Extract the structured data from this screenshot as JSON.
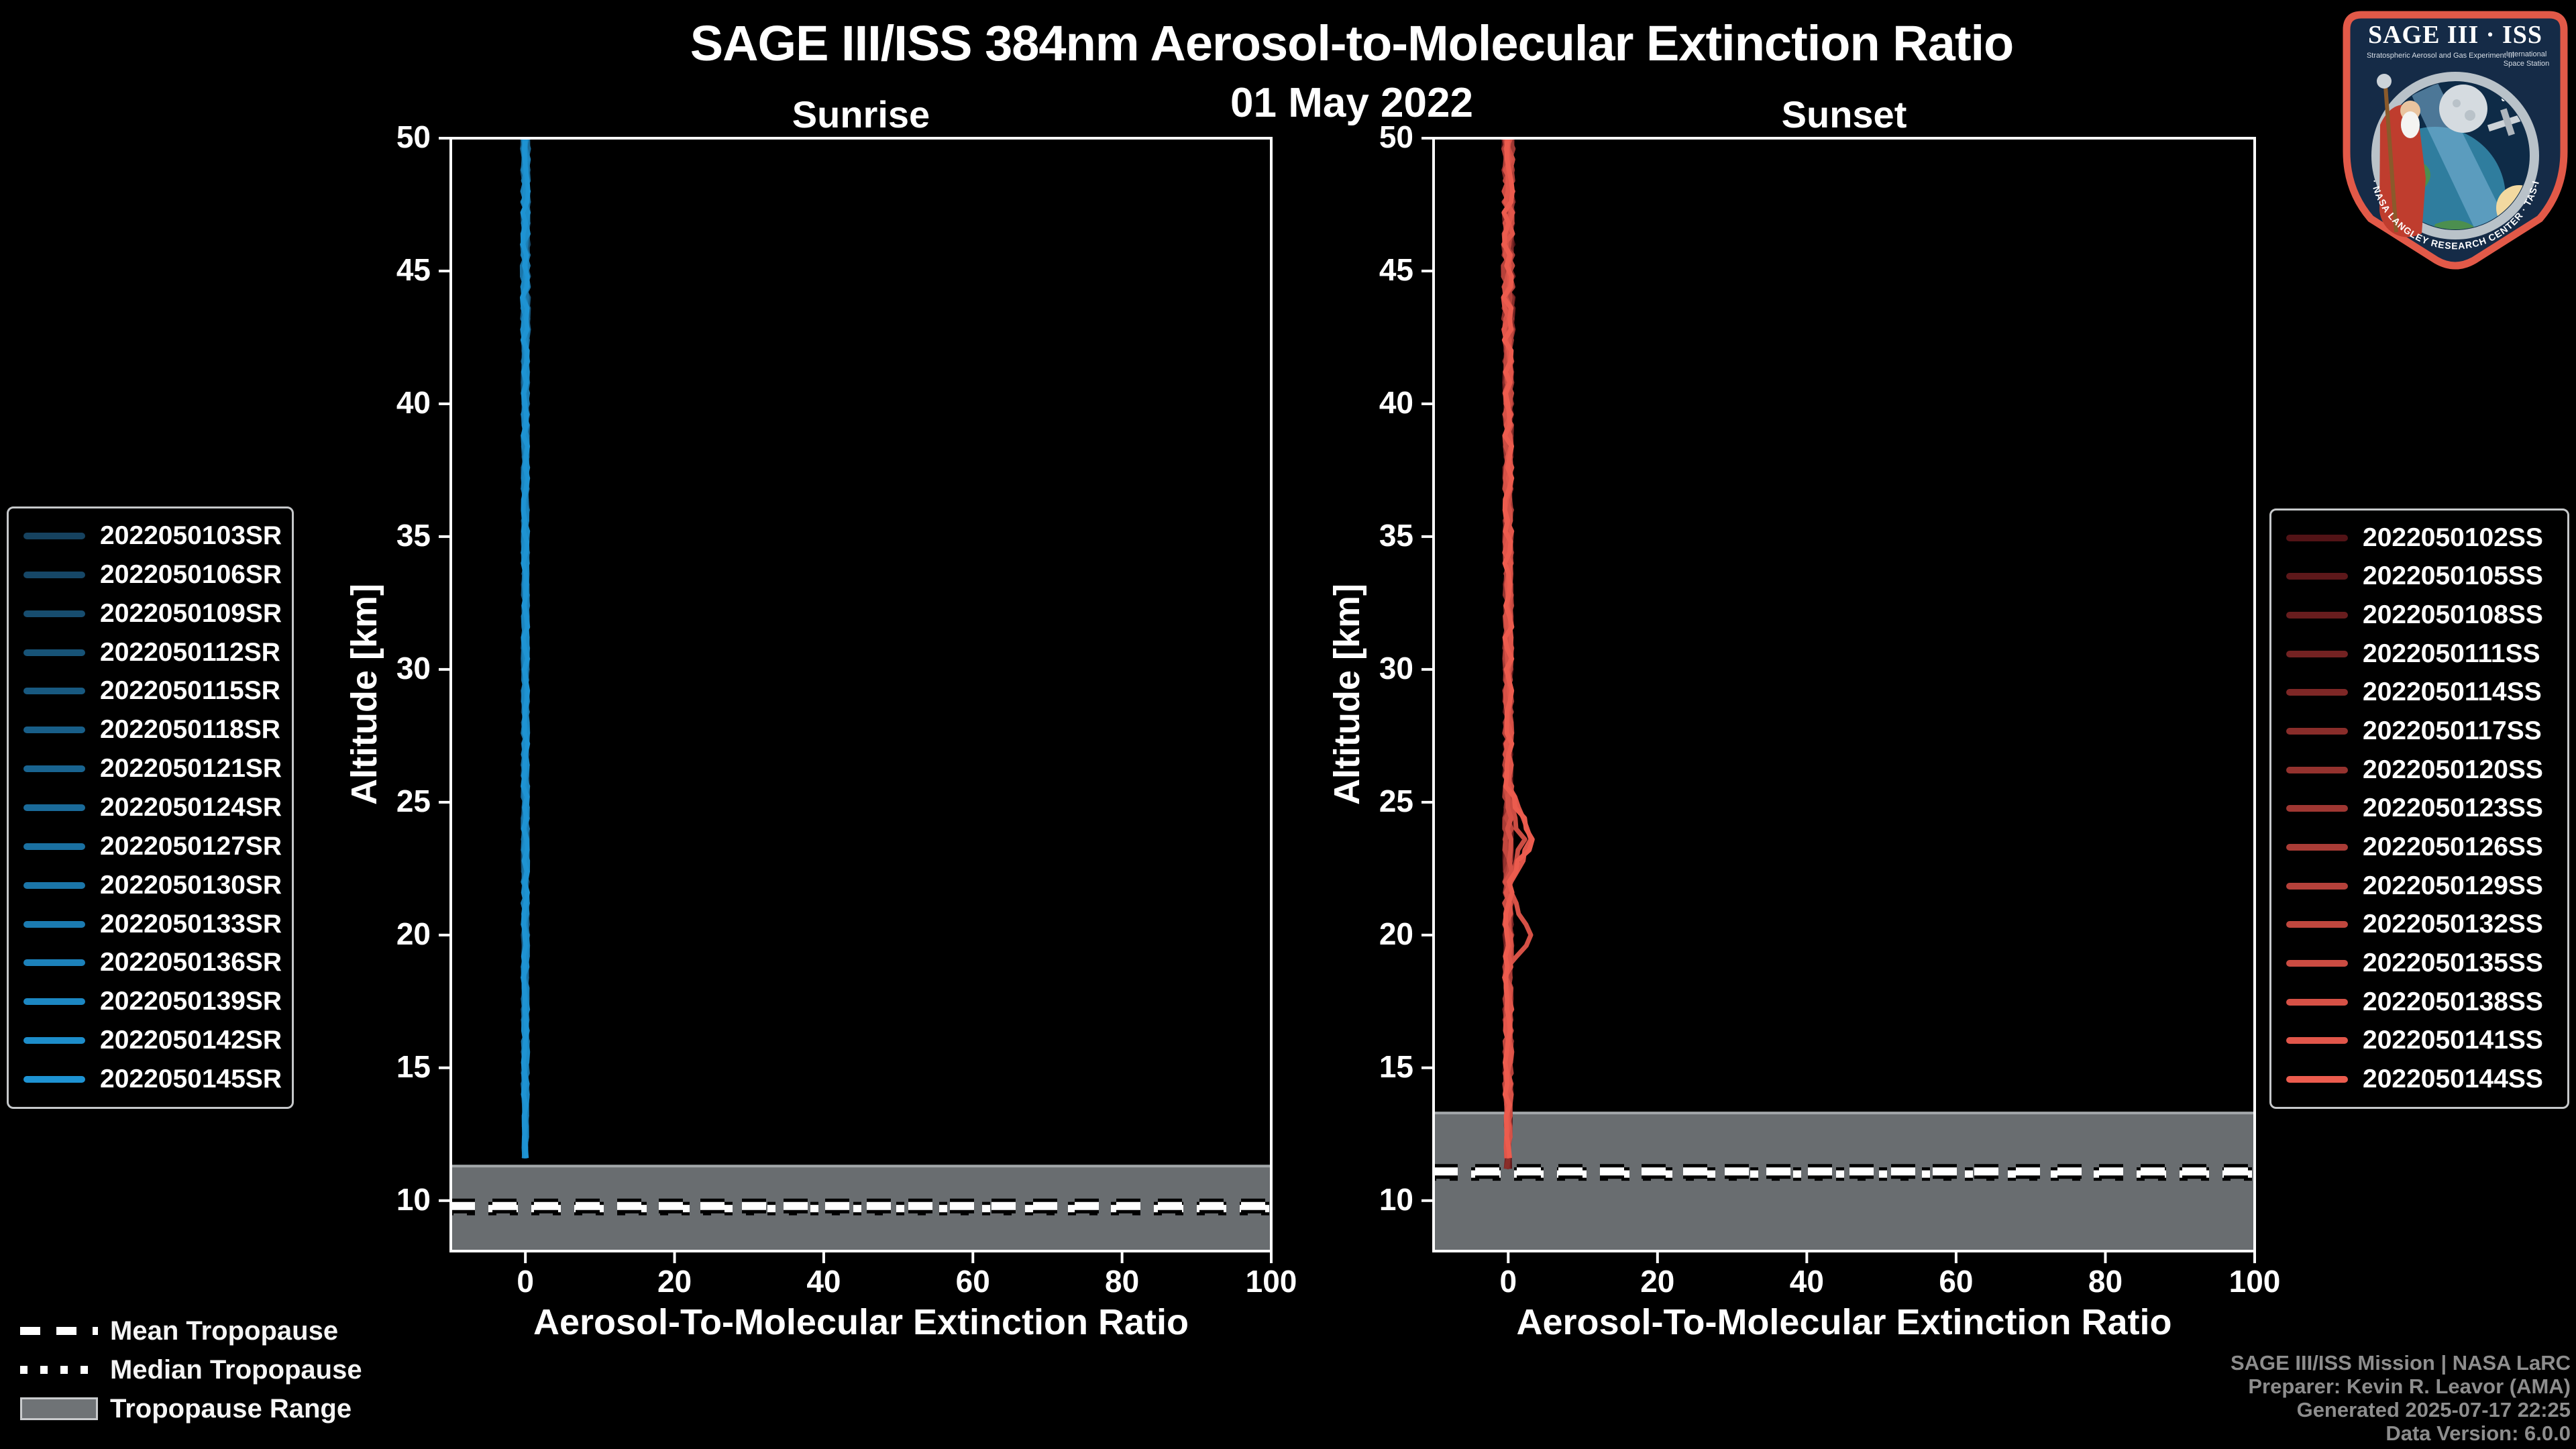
{
  "title": {
    "text": "SAGE III/ISS 384nm Aerosol-to-Molecular Extinction Ratio",
    "date": "01 May 2022"
  },
  "credits": [
    "SAGE III/ISS Mission | NASA LaRC",
    "Preparer: Kevin R. Leavor (AMA)",
    "Generated 2025-07-17 22:25",
    "Data Version: 6.0.0"
  ],
  "tropopause_legend": {
    "mean_label": "Mean Tropopause",
    "median_label": "Median Tropopause",
    "range_label": "Tropopause Range"
  },
  "logo": {
    "title": "SAGE III · ISS",
    "subtitle_left": "Stratospheric Aerosol and Gas Experiment III",
    "subtitle_right_1": "International",
    "subtitle_right_2": "Space Station",
    "arc_text": "BALL · NASA LANGLEY RESEARCH CENTER · TAS-I · ESA"
  },
  "colors": {
    "background": "#000000",
    "band": "#696D70",
    "band_edge": "#A3A7AA",
    "axis": "#FFFFFF",
    "text": "#FFFFFF",
    "credits_text": "#8D8D8D",
    "legend_border": "#C6C8CA",
    "sunrise_line_start": "#16425F",
    "sunrise_line_end": "#1E93D3",
    "sunset_line_start": "#521316",
    "sunset_line_end": "#EC5C4E",
    "patch_border": "#E25948",
    "patch_bg": "#152B47"
  },
  "chart_data": {
    "type": "line",
    "title": "SAGE III/ISS 384nm Aerosol-to-Molecular Extinction Ratio",
    "subtitle": "01 May 2022",
    "panels": [
      {
        "id": "sunrise",
        "title": "Sunrise",
        "xlabel": "Aerosol-To-Molecular Extinction Ratio",
        "ylabel": "Altitude [km]",
        "xlim": [
          -10,
          100
        ],
        "ylim": [
          8.1,
          50
        ],
        "xticks": [
          0,
          20,
          40,
          60,
          80,
          100
        ],
        "yticks": [
          50,
          45,
          40,
          35,
          30,
          25,
          20,
          15,
          10
        ],
        "grid": false,
        "legend_position": "outside-left",
        "tropopause": {
          "mean_km": 9.8,
          "median_km": 9.7,
          "range_top_km": 11.3,
          "range_bottom_km": 8.1
        },
        "series_labels": [
          "2022050103SR",
          "2022050106SR",
          "2022050109SR",
          "2022050112SR",
          "2022050115SR",
          "2022050118SR",
          "2022050121SR",
          "2022050124SR",
          "2022050127SR",
          "2022050130SR",
          "2022050133SR",
          "2022050136SR",
          "2022050139SR",
          "2022050142SR",
          "2022050145SR"
        ],
        "line_top_km": 50,
        "line_bottom_km": 11.3,
        "bottom_spread_km": 0.15,
        "jitter_ratio": 0.32,
        "bumps": [],
        "representative_profile": [
          [
            50,
            0
          ],
          [
            45,
            0
          ],
          [
            40,
            0
          ],
          [
            35,
            0
          ],
          [
            30,
            0
          ],
          [
            25,
            0
          ],
          [
            20,
            0
          ],
          [
            15,
            0
          ],
          [
            11.3,
            0
          ]
        ]
      },
      {
        "id": "sunset",
        "title": "Sunset",
        "xlabel": "Aerosol-To-Molecular Extinction Ratio",
        "ylabel": "Altitude [km]",
        "xlim": [
          -10,
          100
        ],
        "ylim": [
          8.1,
          50
        ],
        "xticks": [
          0,
          20,
          40,
          60,
          80,
          100
        ],
        "yticks": [
          50,
          45,
          40,
          35,
          30,
          25,
          20,
          15,
          10
        ],
        "grid": false,
        "legend_position": "outside-right",
        "tropopause": {
          "mean_km": 11.1,
          "median_km": 11.0,
          "range_top_km": 13.3,
          "range_bottom_km": 8.1
        },
        "series_labels": [
          "2022050102SS",
          "2022050105SS",
          "2022050108SS",
          "2022050111SS",
          "2022050114SS",
          "2022050117SS",
          "2022050120SS",
          "2022050123SS",
          "2022050126SS",
          "2022050129SS",
          "2022050132SS",
          "2022050135SS",
          "2022050138SS",
          "2022050141SS",
          "2022050144SS"
        ],
        "line_top_km": 50,
        "line_bottom_km": 11.0,
        "bottom_spread_km": 0.55,
        "jitter_ratio": 0.5,
        "bumps": [
          {
            "alt_km": 23.7,
            "halfwidth_km": 1.1,
            "peak_ratio": 3.0,
            "series": [
              13,
              14
            ]
          },
          {
            "alt_km": 23.5,
            "halfwidth_km": 0.8,
            "peak_ratio": 2.0,
            "series": [
              11
            ]
          },
          {
            "alt_km": 20.1,
            "halfwidth_km": 0.9,
            "peak_ratio": 2.9,
            "series": [
              12
            ]
          }
        ],
        "representative_profile": [
          [
            50,
            0
          ],
          [
            45,
            0
          ],
          [
            40,
            0
          ],
          [
            35,
            0
          ],
          [
            30,
            0
          ],
          [
            25,
            0.4
          ],
          [
            23.7,
            3.0
          ],
          [
            22,
            0.3
          ],
          [
            20.1,
            2.9
          ],
          [
            19,
            0
          ],
          [
            15,
            0
          ],
          [
            11,
            0
          ]
        ]
      }
    ]
  }
}
